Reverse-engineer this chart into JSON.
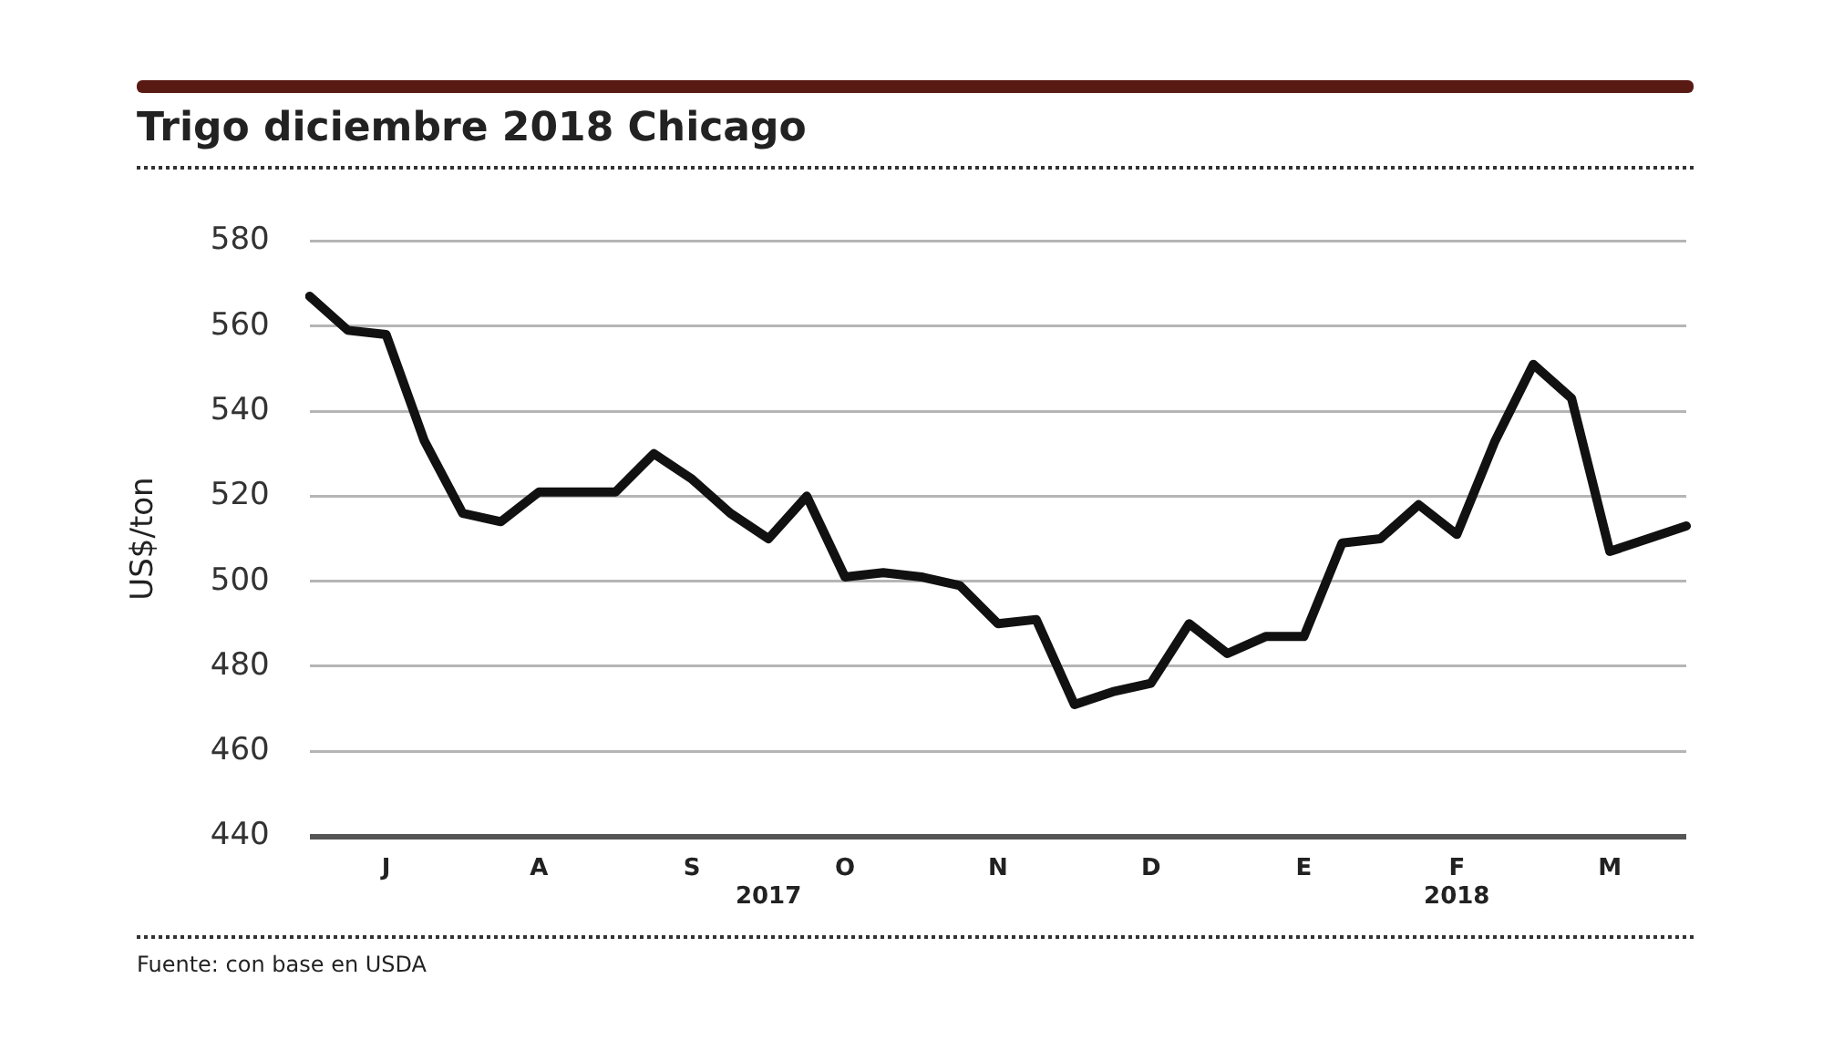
{
  "chart_data": {
    "type": "line",
    "title": "Trigo diciembre 2018 Chicago",
    "ylabel": "US$/ton",
    "categories": [
      null,
      null,
      "J",
      null,
      null,
      null,
      "A",
      null,
      null,
      null,
      "S",
      null,
      "\n2017",
      null,
      "O",
      null,
      null,
      null,
      "N",
      null,
      null,
      null,
      "D",
      null,
      null,
      null,
      "E",
      null,
      null,
      null,
      "F\n2018",
      null,
      null,
      null,
      "M",
      null,
      null
    ],
    "series": [
      {
        "color": "#111111",
        "values": [
          567,
          559,
          558,
          533,
          516,
          514,
          521,
          521,
          521,
          530,
          524,
          516,
          510,
          520,
          501,
          502,
          501,
          499,
          490,
          491,
          471,
          474,
          476,
          490,
          483,
          487,
          487,
          509,
          510,
          518,
          511,
          533,
          551,
          543,
          507,
          510,
          513
        ]
      }
    ],
    "ylim": [
      440,
      580
    ],
    "yticks": [
      440,
      460,
      480,
      500,
      520,
      540,
      560,
      580
    ],
    "grid": "y",
    "legend": false,
    "marker": "none",
    "line_style": "solid",
    "annotations": [
      "Fuente: con base en USDA"
    ]
  }
}
